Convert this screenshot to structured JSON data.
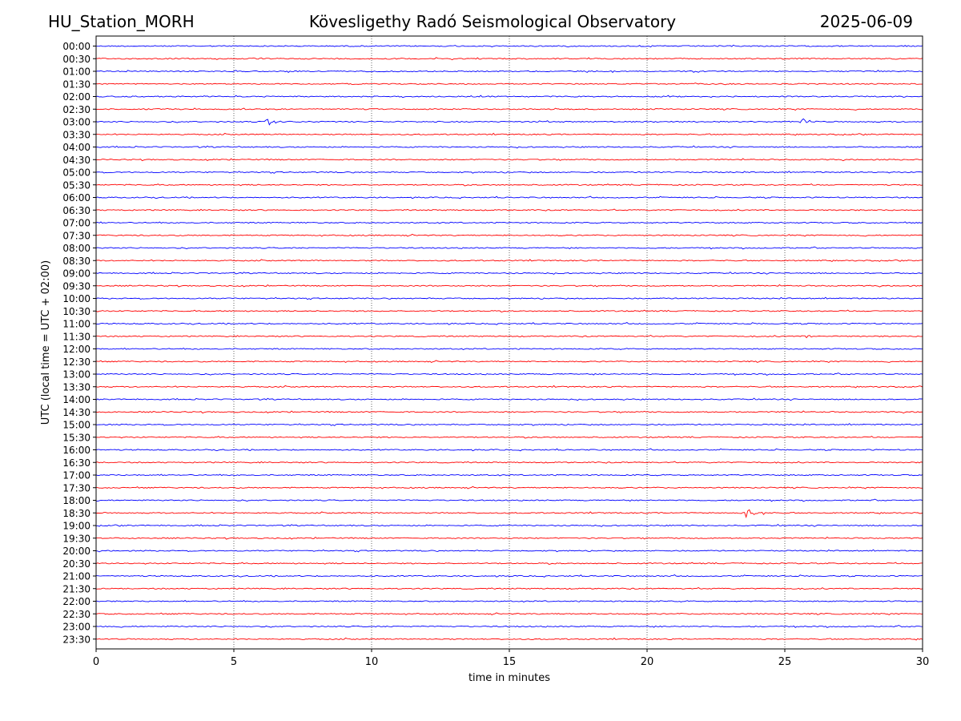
{
  "header": {
    "station": "HU_Station_MORH",
    "observatory": "Kövesligethy Radó Seismological Observatory",
    "date": "2025-06-09"
  },
  "chart_data": {
    "type": "line",
    "title": "Kövesligethy Radó Seismological Observatory",
    "xlabel": "time in minutes",
    "ylabel": "UTC (local time = UTC + 02:00)",
    "xlim": [
      0,
      30
    ],
    "x_ticks": [
      0,
      5,
      10,
      15,
      20,
      25,
      30
    ],
    "grid": "vertical dotted lines at each x tick",
    "series_colors": [
      "#0000ff",
      "#ff0000"
    ],
    "rows": [
      "00:00",
      "00:30",
      "01:00",
      "01:30",
      "02:00",
      "02:30",
      "03:00",
      "03:30",
      "04:00",
      "04:30",
      "05:00",
      "05:30",
      "06:00",
      "06:30",
      "07:00",
      "07:30",
      "08:00",
      "08:30",
      "09:00",
      "09:30",
      "10:00",
      "10:30",
      "11:00",
      "11:30",
      "12:00",
      "12:30",
      "13:00",
      "13:30",
      "14:00",
      "14:30",
      "15:00",
      "15:30",
      "16:00",
      "16:30",
      "17:00",
      "17:30",
      "18:00",
      "18:30",
      "19:00",
      "19:30",
      "20:00",
      "20:30",
      "21:00",
      "21:30",
      "22:00",
      "22:30",
      "23:00",
      "23:30"
    ],
    "events": [
      {
        "row": "03:00",
        "minute": 6.2,
        "amplitude": 1.0
      },
      {
        "row": "03:00",
        "minute": 25.6,
        "amplitude": 0.8
      },
      {
        "row": "11:30",
        "minute": 25.8,
        "amplitude": 0.6
      },
      {
        "row": "18:30",
        "minute": 23.6,
        "amplitude": 1.3
      }
    ]
  }
}
